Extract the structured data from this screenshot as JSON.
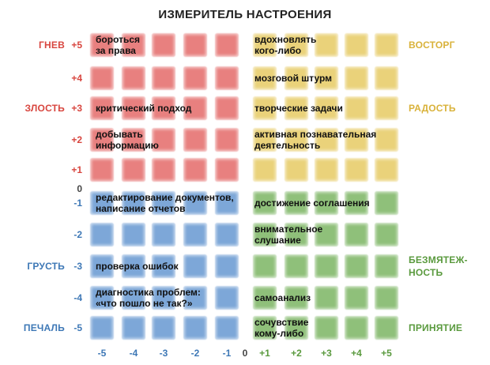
{
  "title": "ИЗМЕРИТЕЛЬ НАСТРОЕНИЯ",
  "colors": {
    "red": "#e8807f",
    "yellow": "#ead27a",
    "blue": "#7da7d8",
    "green": "#8fc07a",
    "red_text": "#d8463f",
    "yellow_text": "#d9b23a",
    "blue_text": "#3e78b6",
    "green_text": "#5a9a3e",
    "axis_text": "#444444"
  },
  "x_ticks": {
    "negative": [
      "-5",
      "-4",
      "-3",
      "-2",
      "-1"
    ],
    "zero": "0",
    "positive": [
      "+1",
      "+2",
      "+3",
      "+4",
      "+5"
    ]
  },
  "y_ticks": {
    "positive": [
      "+5",
      "+4",
      "+3",
      "+2",
      "+1"
    ],
    "zero": "0",
    "negative": [
      "-1",
      "-2",
      "-3",
      "-4",
      "-5"
    ]
  },
  "left_labels": [
    {
      "text": "ГНЕВ",
      "level": 5,
      "tone": "red"
    },
    {
      "text": "ЗЛОСТЬ",
      "level": 3,
      "tone": "red"
    },
    {
      "text": "ГРУСТЬ",
      "level": -3,
      "tone": "blue"
    },
    {
      "text": "ПЕЧАЛЬ",
      "level": -5,
      "tone": "blue"
    }
  ],
  "right_labels": [
    {
      "text": "ВОСТОРГ",
      "level": 5,
      "tone": "yellow"
    },
    {
      "text": "РАДОСТЬ",
      "level": 3,
      "tone": "yellow"
    },
    {
      "text": "БЕЗМЯТЕЖ-\nНОСТЬ",
      "level": -3,
      "tone": "green"
    },
    {
      "text": "ПРИНЯТИЕ",
      "level": -5,
      "tone": "green"
    }
  ],
  "activities_left": [
    {
      "text": "бороться\nза права",
      "level": 5
    },
    {
      "text": "критический подход",
      "level": 3
    },
    {
      "text": "добывать\nинформацию",
      "level": 2
    },
    {
      "text": "редактирование документов,\nнаписание отчетов",
      "level": -1
    },
    {
      "text": "проверка ошибок",
      "level": -3
    },
    {
      "text": "диагностика проблем:\n«что пошло не так?»",
      "level": -4
    }
  ],
  "activities_right": [
    {
      "text": "вдохновлять\nкого-либо",
      "level": 5
    },
    {
      "text": "мозговой штурм",
      "level": 4
    },
    {
      "text": "творческие задачи",
      "level": 3
    },
    {
      "text": "активная познавательная\nдеятельность",
      "level": 2
    },
    {
      "text": "достижение соглашения",
      "level": -1
    },
    {
      "text": "внимательное\nслушание",
      "level": -2
    },
    {
      "text": "самоанализ",
      "level": -4
    },
    {
      "text": "сочувствие\nкому-либо",
      "level": -5
    }
  ]
}
